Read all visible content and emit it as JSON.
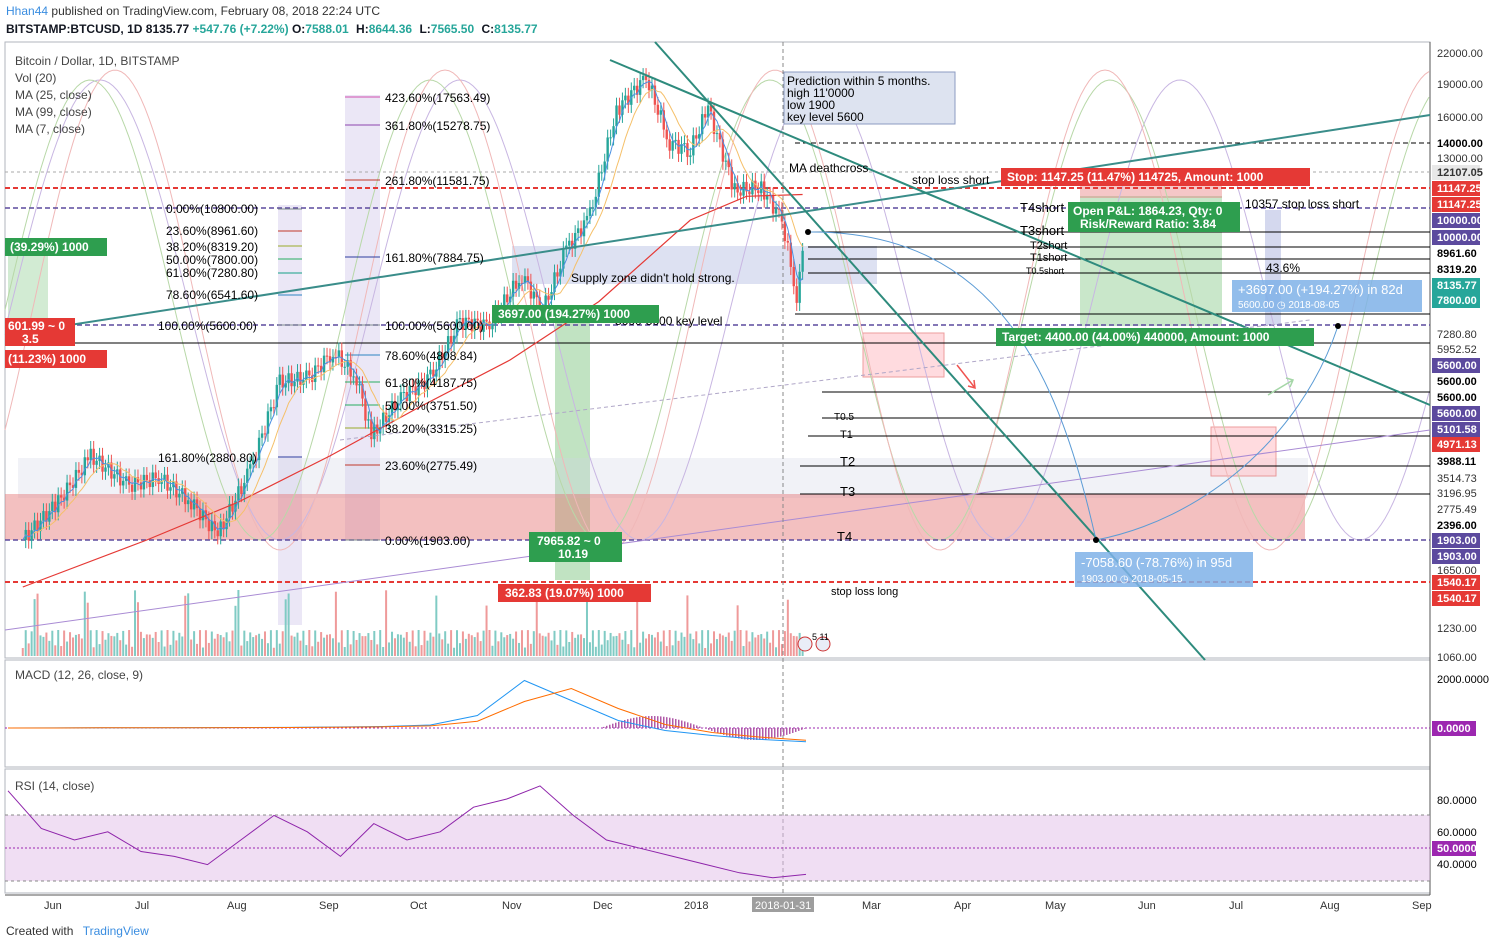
{
  "header": {
    "user": "Hhan44",
    "published": "published on TradingView.com, February 08, 2018 22:24 UTC",
    "symbol": "BITSTAMP:BTCUSD, 1D",
    "last": "8135.77",
    "change": "+547.76 (+7.22%)",
    "o_label": "O:",
    "o": "7588.01",
    "h_label": "H:",
    "h": "8644.36",
    "l_label": "L:",
    "l": "7565.50",
    "c_label": "C:",
    "c": "8135.77"
  },
  "legend": {
    "title": "Bitcoin / Dollar, 1D, BITSTAMP",
    "vol": "Vol (20)",
    "ma25": "MA (25, close)",
    "ma99": "MA (99, close)",
    "ma7": "MA (7, close)"
  },
  "prediction_box": [
    "Prediction within 5 months.",
    "high 11'0000",
    "low 1900",
    "key level 5600"
  ],
  "annotations": {
    "deathcross": "MA deathcross",
    "stop_loss_short": "stop loss short",
    "stop_loss_short2": "10357 stop loss short",
    "supply_zone": "Supply zone didn't hold strong.",
    "key_level": "5600-5600 key level",
    "stop_loss_long": "stop loss long",
    "pct": "43.6%",
    "t4short": "T4short",
    "t3short": "T3short",
    "t2short": "T2short",
    "t1short": "T1short",
    "t05short": "T0.5short",
    "t05": "T0.5",
    "t1": "T1",
    "t2": "T2",
    "t3": "T3",
    "t4": "T4",
    "flags": "5  11"
  },
  "tags": {
    "stop": "Stop: 1147.25 (11.47%) 114725, Amount: 1000",
    "open_pnl": "Open P&L: 1864.23, Qty: 0",
    "risk_reward": "Risk/Reward Ratio: 3.84",
    "target": "Target: 4400.00 (44.00%) 440000, Amount: 1000",
    "up_move": "+3697.00 (+194.27%) in 82d",
    "up_move_sub": "5600.00  ◷ 2018-08-05",
    "down_move": "-7058.60 (-78.76%) in 95d",
    "down_move_sub": "1903.00  ◷ 2018-05-15",
    "left_green": "(39.29%) 1000",
    "left_red1": "601.99 ~ 0",
    "left_red1b": "3.5",
    "left_red2": "(11.23%) 1000",
    "mid_green": "3697.00 (194.27%) 1000",
    "mid_green2": "7965.82 ~ 0",
    "mid_green2b": "10.19",
    "mid_red": "362.83 (19.07%) 1000"
  },
  "fib_right": [
    {
      "label": "423.60%(17563.49)",
      "color": "#d04fae"
    },
    {
      "label": "361.80%(15278.75)",
      "color": "#8e44ad"
    },
    {
      "label": "261.80%(11581.75)",
      "color": "#c0392b"
    },
    {
      "label": "161.80%(7884.75)",
      "color": "#2c3e9e"
    },
    {
      "label": "100.00%(5600.00)",
      "color": "#7f8c8d"
    },
    {
      "label": "78.60%(4808.84)",
      "color": "#2e86c1"
    },
    {
      "label": "61.80%(4187.75)",
      "color": "#27ae60"
    },
    {
      "label": "50.00%(3751.50)",
      "color": "#27ae60"
    },
    {
      "label": "38.20%(3315.25)",
      "color": "#9aab2a"
    },
    {
      "label": "23.60%(2775.49)",
      "color": "#c0392b"
    },
    {
      "label": "0.00%(1903.00)",
      "color": "#7f8c8d"
    }
  ],
  "fib_left": [
    {
      "label": "0.00%(10800.00)",
      "color": "#7f8c8d"
    },
    {
      "label": "23.60%(8961.60)",
      "color": "#c0392b"
    },
    {
      "label": "38.20%(8319.20)",
      "color": "#9aab2a"
    },
    {
      "label": "50.00%(7800.00)",
      "color": "#27ae60"
    },
    {
      "label": "61.80%(7280.80)",
      "color": "#16a085"
    },
    {
      "label": "78.60%(6541.60)",
      "color": "#2e86c1"
    },
    {
      "label": "100.00%(5600.00)",
      "color": "#7f8c8d"
    },
    {
      "label": "161.80%(2880.80)",
      "color": "#2c3e9e"
    }
  ],
  "price_axis": [
    "22000.00",
    "19000.00",
    "16000.00",
    "13000.00",
    "7800.00",
    "7280.80",
    "5952.52",
    "3514.73",
    "3196.95",
    "2775.49",
    "1650.00",
    "1230.00",
    "1060.00"
  ],
  "price_tags": [
    {
      "label": "14000.00",
      "color": "#ffffff",
      "text": "#000000"
    },
    {
      "label": "12107.05",
      "color": "#e8e8e8",
      "text": "#333333"
    },
    {
      "label": "11147.25",
      "color": "#e53935",
      "text": "#ffffff"
    },
    {
      "label": "11147.25",
      "color": "#e53935",
      "text": "#ffffff"
    },
    {
      "label": "10000.00",
      "color": "#5c4a9e",
      "text": "#ffffff"
    },
    {
      "label": "10000.00",
      "color": "#5c4a9e",
      "text": "#ffffff"
    },
    {
      "label": "8961.60",
      "color": "#ffffff",
      "text": "#000000"
    },
    {
      "label": "8319.20",
      "color": "#ffffff",
      "text": "#000000"
    },
    {
      "label": "8135.77",
      "color": "#26a69a",
      "text": "#ffffff"
    },
    {
      "label": "7800.00",
      "color": "#26a69a",
      "text": "#ffffff"
    },
    {
      "label": "5600.00",
      "color": "#5c4a9e",
      "text": "#ffffff"
    },
    {
      "label": "5600.00",
      "color": "#ffffff",
      "text": "#000000"
    },
    {
      "label": "5600.00",
      "color": "#ffffff",
      "text": "#000000"
    },
    {
      "label": "5600.00",
      "color": "#5c4a9e",
      "text": "#ffffff"
    },
    {
      "label": "5101.58",
      "color": "#5c4a9e",
      "text": "#ffffff"
    },
    {
      "label": "4971.13",
      "color": "#e53935",
      "text": "#ffffff"
    },
    {
      "label": "3988.11",
      "color": "#ffffff",
      "text": "#000000"
    },
    {
      "label": "2396.00",
      "color": "#ffffff",
      "text": "#000000"
    },
    {
      "label": "1903.00",
      "color": "#5c4a9e",
      "text": "#ffffff"
    },
    {
      "label": "1903.00",
      "color": "#5c4a9e",
      "text": "#ffffff"
    },
    {
      "label": "1540.17",
      "color": "#e53935",
      "text": "#ffffff"
    },
    {
      "label": "1540.17",
      "color": "#e53935",
      "text": "#ffffff"
    }
  ],
  "time_axis": [
    "Jun",
    "Jul",
    "Aug",
    "Sep",
    "Oct",
    "Nov",
    "Dec",
    "2018",
    "Mar",
    "Apr",
    "May",
    "Jun",
    "Jul",
    "Aug",
    "Sep"
  ],
  "time_cursor": "2018-01-31",
  "macd": {
    "title": "MACD (12, 26, close, 9)",
    "axis_top": "2000.0000",
    "axis_zero": "0.0000"
  },
  "rsi": {
    "title": "RSI (14, close)",
    "axis": [
      "80.0000",
      "60.0000",
      "40.0000"
    ],
    "level": "50.0000"
  },
  "footer": {
    "created": "Created with",
    "brand": "TradingView"
  },
  "chart_data": {
    "type": "line",
    "title": "Bitcoin / Dollar, 1D, BITSTAMP",
    "xlabel": "",
    "ylabel": "",
    "scale": "log",
    "ylim": [
      1060,
      22000
    ],
    "series": [
      {
        "name": "BTCUSD",
        "x": [
          "2017-05-20",
          "2017-06-01",
          "2017-06-12",
          "2017-06-25",
          "2017-07-05",
          "2017-07-16",
          "2017-07-25",
          "2017-08-05",
          "2017-08-15",
          "2017-08-25",
          "2017-09-02",
          "2017-09-10",
          "2017-09-15",
          "2017-09-25",
          "2017-10-05",
          "2017-10-15",
          "2017-10-25",
          "2017-11-05",
          "2017-11-12",
          "2017-11-20",
          "2017-11-28",
          "2017-12-07",
          "2017-12-17",
          "2017-12-25",
          "2018-01-01",
          "2018-01-07",
          "2018-01-16",
          "2018-01-25",
          "2018-02-01",
          "2018-02-06",
          "2018-02-08"
        ],
        "values": [
          1900,
          2300,
          2900,
          2500,
          2600,
          2300,
          1950,
          2700,
          4200,
          4300,
          4900,
          4300,
          3200,
          3900,
          4300,
          5700,
          5600,
          7200,
          6000,
          8200,
          9700,
          16500,
          19500,
          14000,
          13500,
          16700,
          11000,
          11200,
          9500,
          6500,
          8135.77
        ]
      },
      {
        "name": "MA (99, close)",
        "x": [
          "2017-05-20",
          "2017-07-01",
          "2017-08-01",
          "2017-09-01",
          "2017-10-01",
          "2017-11-01",
          "2017-12-01",
          "2018-01-01",
          "2018-01-20",
          "2018-02-08"
        ],
        "values": [
          1500,
          1900,
          2300,
          2900,
          3700,
          4700,
          6300,
          9500,
          10700,
          10800
        ]
      }
    ],
    "macd_values": [
      0,
      5,
      10,
      8,
      15,
      20,
      25,
      40,
      60,
      120,
      500,
      1900,
      1100,
      300,
      -100,
      -300,
      -450,
      -550
    ],
    "rsi_values": [
      85,
      62,
      55,
      60,
      48,
      45,
      40,
      55,
      70,
      60,
      45,
      65,
      55,
      60,
      75,
      80,
      88,
      70,
      55,
      50,
      45,
      40,
      35,
      32,
      34
    ]
  }
}
